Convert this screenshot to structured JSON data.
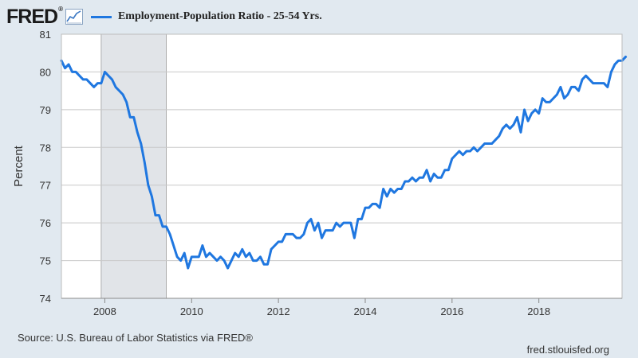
{
  "header": {
    "logo_text": "FRED",
    "logo_mark": "®",
    "icon": "line-chart-icon",
    "series_label": "Employment-Population Ratio - 25-54 Yrs."
  },
  "colors": {
    "line": "#1f77e0",
    "recession": "#e1e4e8",
    "background": "#e1e9f0",
    "plot_bg": "#ffffff",
    "grid": "#c8c8c8"
  },
  "footer": {
    "source": "Source: U.S. Bureau of Labor Statistics via FRED®",
    "site": "fred.stlouisfed.org"
  },
  "chart_data": {
    "type": "line",
    "title": "",
    "xlabel": "",
    "ylabel": "Percent",
    "ylim": [
      74,
      81
    ],
    "xlim": [
      "2007-01",
      "2019-12"
    ],
    "y_ticks": [
      "74",
      "75",
      "76",
      "77",
      "78",
      "79",
      "80",
      "81"
    ],
    "x_ticks": [
      "2008",
      "2010",
      "2012",
      "2014",
      "2016",
      "2018"
    ],
    "grid": true,
    "recession_bands": [
      {
        "start": "2007-12",
        "end": "2009-06"
      }
    ],
    "series": [
      {
        "name": "Employment-Population Ratio - 25-54 Yrs.",
        "start": "2007-01",
        "frequency": "monthly",
        "values": [
          80.3,
          80.1,
          80.2,
          80.0,
          80.0,
          79.9,
          79.8,
          79.8,
          79.7,
          79.6,
          79.7,
          79.7,
          80.0,
          79.9,
          79.8,
          79.6,
          79.5,
          79.4,
          79.2,
          78.8,
          78.8,
          78.4,
          78.1,
          77.6,
          77.0,
          76.7,
          76.2,
          76.2,
          75.9,
          75.9,
          75.7,
          75.4,
          75.1,
          75.0,
          75.2,
          74.8,
          75.1,
          75.1,
          75.1,
          75.4,
          75.1,
          75.2,
          75.1,
          75.0,
          75.1,
          75.0,
          74.8,
          75.0,
          75.2,
          75.1,
          75.3,
          75.1,
          75.2,
          75.0,
          75.0,
          75.1,
          74.9,
          74.9,
          75.3,
          75.4,
          75.5,
          75.5,
          75.7,
          75.7,
          75.7,
          75.6,
          75.6,
          75.7,
          76.0,
          76.1,
          75.8,
          76.0,
          75.6,
          75.8,
          75.8,
          75.8,
          76.0,
          75.9,
          76.0,
          76.0,
          76.0,
          75.6,
          76.1,
          76.1,
          76.4,
          76.4,
          76.5,
          76.5,
          76.4,
          76.9,
          76.7,
          76.9,
          76.8,
          76.9,
          76.9,
          77.1,
          77.1,
          77.2,
          77.1,
          77.2,
          77.2,
          77.4,
          77.1,
          77.3,
          77.2,
          77.2,
          77.4,
          77.4,
          77.7,
          77.8,
          77.9,
          77.8,
          77.9,
          77.9,
          78.0,
          77.9,
          78.0,
          78.1,
          78.1,
          78.1,
          78.2,
          78.3,
          78.5,
          78.6,
          78.5,
          78.6,
          78.8,
          78.4,
          79.0,
          78.7,
          78.9,
          79.0,
          78.9,
          79.3,
          79.2,
          79.2,
          79.3,
          79.4,
          79.6,
          79.3,
          79.4,
          79.6,
          79.6,
          79.5,
          79.8,
          79.9,
          79.8,
          79.7,
          79.7,
          79.7,
          79.7,
          79.6,
          80.0,
          80.2,
          80.3,
          80.3,
          80.4
        ]
      }
    ]
  }
}
